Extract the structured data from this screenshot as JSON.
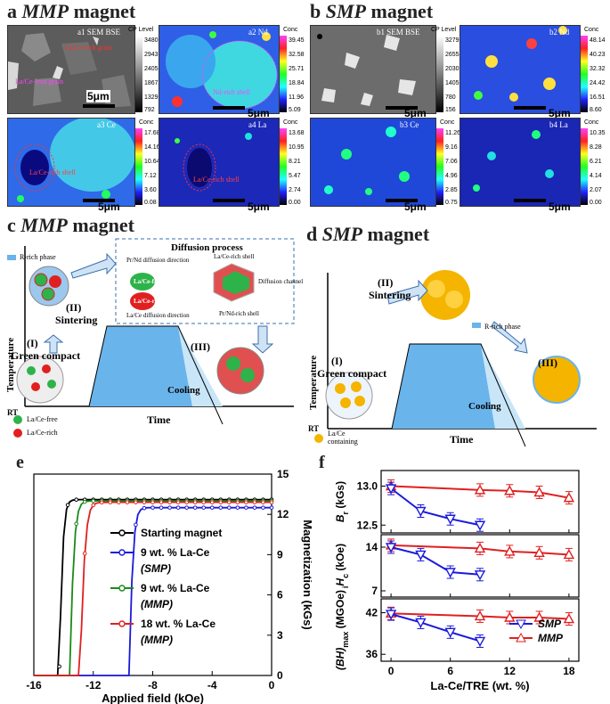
{
  "panel_a": {
    "letter": "a",
    "title": "MMP",
    "title_suffix": "magnet",
    "maps": [
      {
        "label": "a1 SEM BSE",
        "cbar_title": "CP Level",
        "ticks": [
          "3480",
          "2943",
          "2405",
          "1867",
          "1329",
          "792"
        ],
        "scale": "5μm",
        "annotations": [
          "La/Ce-lean grain",
          "La/Ce-rich grain"
        ]
      },
      {
        "label": "a2 Nd",
        "cbar_title": "Conc",
        "ticks": [
          "39.45",
          "32.58",
          "25.71",
          "18.84",
          "11.96",
          "5.09"
        ],
        "scale": "5μm",
        "annotations": [
          "Nd-rich shell"
        ]
      },
      {
        "label": "a3 Ce",
        "cbar_title": "Conc",
        "ticks": [
          "17.68",
          "14.16",
          "10.64",
          "7.12",
          "3.60",
          "0.08"
        ],
        "scale": "5μm",
        "annotations": [
          "La/Ce-rich shell"
        ]
      },
      {
        "label": "a4 La",
        "cbar_title": "Conc",
        "ticks": [
          "13.68",
          "10.95",
          "8.21",
          "5.47",
          "2.74",
          "0.00"
        ],
        "scale": "5μm",
        "annotations": [
          "La/Ce-rich shell"
        ]
      }
    ]
  },
  "panel_b": {
    "letter": "b",
    "title": "SMP",
    "title_suffix": "magnet",
    "maps": [
      {
        "label": "b1 SEM BSE",
        "cbar_title": "CP Level",
        "ticks": [
          "3279",
          "2655",
          "2030",
          "1405",
          "780",
          "156"
        ],
        "scale": "5μm"
      },
      {
        "label": "b2 Nd",
        "cbar_title": "Conc",
        "ticks": [
          "48.14",
          "40.23",
          "32.32",
          "24.42",
          "16.51",
          "8.60"
        ],
        "scale": "5μm"
      },
      {
        "label": "b3 Ce",
        "cbar_title": "Conc",
        "ticks": [
          "11.26",
          "9.16",
          "7.06",
          "4.96",
          "2.85",
          "0.75"
        ],
        "scale": "5μm"
      },
      {
        "label": "b4 La",
        "cbar_title": "Conc",
        "ticks": [
          "10.35",
          "8.28",
          "6.21",
          "4.14",
          "2.07",
          "0.00"
        ],
        "scale": "5μm"
      }
    ]
  },
  "panel_c": {
    "letter": "c",
    "title": "MMP",
    "title_suffix": "magnet",
    "ylabel": "Temperature",
    "xlabel": "Time",
    "rt": "RT",
    "r_rich_phase": "R-rich phase",
    "step1": "(I)",
    "step1_text": "Green compact",
    "step2": "(II)",
    "step2_text": "Sintering",
    "step3": "(III)",
    "cooling": "Cooling",
    "legend_free": "La/Ce-free",
    "legend_rich": "La/Ce-rich",
    "diffusion_title": "Diffusion process",
    "prnd_dir": "Pr/Nd diffusion direction",
    "lace_free": "La/Ce-free",
    "lace_rich": "La/Ce-rich",
    "lace_dir": "La/Ce diffusion direction",
    "lace_shell": "La/Ce-rich shell",
    "diff_channel": "Diffusion channel",
    "prnd_shell": "Pr/Nd-rich shell"
  },
  "panel_d": {
    "letter": "d",
    "title": "SMP",
    "title_suffix": "magnet",
    "ylabel": "Temperature",
    "xlabel": "Time",
    "rt": "RT",
    "r_rich_phase": "R-rich phase",
    "step1": "(I)",
    "step1_text": "Green compact",
    "step2": "(II)",
    "step2_text": "Sintering",
    "step3": "(III)",
    "cooling": "Cooling",
    "legend": "La/Ce containing"
  },
  "chart_data": [
    {
      "id": "e",
      "type": "line",
      "xlabel": "Applied field (kOe)",
      "ylabel": "Magnetization (kGs)",
      "xlim": [
        -16,
        0
      ],
      "ylim": [
        0,
        15
      ],
      "xticks": [
        "-16",
        "-12",
        "-8",
        "-4",
        "0"
      ],
      "yticks": [
        "0",
        "3",
        "6",
        "9",
        "12",
        "15"
      ],
      "series": [
        {
          "name": "Starting magnet",
          "color": "#000000",
          "ms": 13.1,
          "hc": -14.3
        },
        {
          "name": "9 wt. % La-Ce (SMP)",
          "color": "#1a1adc",
          "ms": 12.5,
          "hc": -9.6
        },
        {
          "name": "9 wt. % La-Ce (MMP)",
          "color": "#1a8a1a",
          "ms": 13.0,
          "hc": -13.6
        },
        {
          "name": "18 wt. % La-Ce (MMP)",
          "color": "#e02020",
          "ms": 12.9,
          "hc": -12.9
        }
      ]
    },
    {
      "id": "f",
      "type": "line",
      "xlabel": "La-Ce/TRE (wt. %)",
      "x": [
        0,
        3,
        6,
        9,
        12,
        15,
        18
      ],
      "xticks": [
        "0",
        "6",
        "12",
        "18"
      ],
      "legend": [
        "SMP",
        "MMP"
      ],
      "subplots": [
        {
          "ylabel": "Br (kGs)",
          "ylim": [
            12.4,
            13.2
          ],
          "yticks": [
            "12.5",
            "13.0"
          ],
          "SMP": {
            "x": [
              0,
              3,
              6,
              9
            ],
            "y": [
              12.97,
              12.68,
              12.58,
              12.5
            ]
          },
          "MMP": {
            "x": [
              0,
              9,
              12,
              15,
              18
            ],
            "y": [
              13.0,
              12.95,
              12.94,
              12.92,
              12.85
            ]
          }
        },
        {
          "ylabel": "iHc (kOe)",
          "ylim": [
            6,
            16
          ],
          "yticks": [
            "7",
            "14"
          ],
          "SMP": {
            "x": [
              0,
              3,
              6,
              9
            ],
            "y": [
              14.0,
              12.8,
              10.0,
              9.6
            ]
          },
          "MMP": {
            "x": [
              0,
              9,
              12,
              15,
              18
            ],
            "y": [
              14.3,
              13.8,
              13.3,
              13.1,
              12.8
            ]
          }
        },
        {
          "ylabel": "(BH)max (MGOe)",
          "ylim": [
            35,
            44
          ],
          "yticks": [
            "36",
            "42"
          ],
          "SMP": {
            "x": [
              0,
              3,
              6,
              9
            ],
            "y": [
              41.8,
              40.6,
              39.2,
              37.9
            ]
          },
          "MMP": {
            "x": [
              0,
              9,
              12,
              15,
              18
            ],
            "y": [
              41.9,
              41.5,
              41.3,
              41.3,
              41.1
            ]
          }
        }
      ]
    }
  ]
}
